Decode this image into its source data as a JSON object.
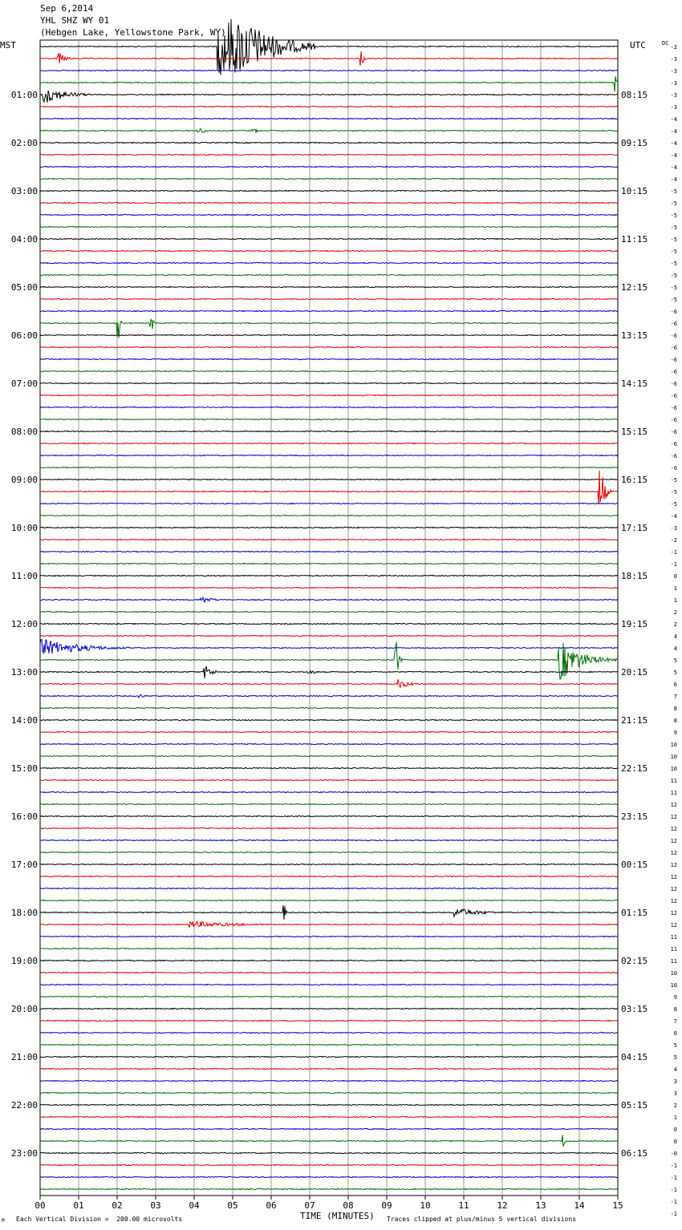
{
  "header": {
    "date": "Sep 6,2014",
    "station": "YHL SHZ WY 01",
    "location": "(Hebgen Lake, Yellowstone Park, WY)"
  },
  "left_label": "MST",
  "right_label": "UTC",
  "dc_label": "DC",
  "footer": {
    "scale": "Each Vertical Division =  200.00 microvolts",
    "xlabel": "TIME (MINUTES)",
    "clip_note": "Traces clipped at plus/minus 5 vertical divisions",
    "corner_mark": "M"
  },
  "chart_data": {
    "type": "line",
    "title": "Sep 6,2014",
    "xlabel": "TIME (MINUTES)",
    "xlim": [
      0,
      15
    ],
    "x_ticks": [
      "00",
      "01",
      "02",
      "03",
      "04",
      "05",
      "06",
      "07",
      "08",
      "09",
      "10",
      "11",
      "12",
      "13",
      "14",
      "15"
    ],
    "trace_colors": [
      "#000000",
      "#e00000",
      "#0000cc",
      "#007000"
    ],
    "mst_hour_labels": [
      "01:00",
      "02:00",
      "03:00",
      "04:00",
      "05:00",
      "06:00",
      "07:00",
      "08:00",
      "09:00",
      "10:00",
      "11:00",
      "12:00",
      "13:00",
      "14:00",
      "15:00",
      "16:00",
      "17:00",
      "18:00",
      "19:00",
      "20:00",
      "21:00",
      "22:00",
      "23:00"
    ],
    "utc_hour_labels": [
      "08:15",
      "09:15",
      "10:15",
      "11:15",
      "12:15",
      "13:15",
      "14:15",
      "15:15",
      "16:15",
      "17:15",
      "18:15",
      "19:15",
      "20:15",
      "21:15",
      "22:15",
      "23:15",
      "00:15",
      "01:15",
      "02:15",
      "03:15",
      "04:15",
      "05:15",
      "06:15"
    ],
    "dc_offsets": [
      "-2",
      "-3",
      "-3",
      "-3",
      "-3",
      "-3",
      "-4",
      "-4",
      "-4",
      "-4",
      "-4",
      "-4",
      "-5",
      "-5",
      "-5",
      "-5",
      "-5",
      "-5",
      "-5",
      "-5",
      "-5",
      "-5",
      "-6",
      "-6",
      "-6",
      "-6",
      "-6",
      "-6",
      "-6",
      "-6",
      "-6",
      "-6",
      "-6",
      "-6",
      "-6",
      "-6",
      "-5",
      "-5",
      "-5",
      "-4",
      "-3",
      "-2",
      "-1",
      "-1",
      "0",
      "1",
      "1",
      "2",
      "2",
      "4",
      "4",
      "5",
      "5",
      "6",
      "7",
      "8",
      "8",
      "9",
      "10",
      "10",
      "10",
      "11",
      "11",
      "12",
      "12",
      "12",
      "12",
      "12",
      "12",
      "12",
      "12",
      "12",
      "12",
      "12",
      "11",
      "11",
      "11",
      "10",
      "10",
      "9",
      "8",
      "7",
      "6",
      "5",
      "5",
      "4",
      "3",
      "3",
      "2",
      "1",
      "0",
      "0",
      "-0",
      "-1",
      "-1",
      "-1",
      "-1",
      "-1"
    ],
    "events": [
      {
        "trace": 0,
        "minute": 4.65,
        "amp": 5,
        "dur": 2.5
      },
      {
        "trace": 1,
        "minute": 0.5,
        "amp": 0.5,
        "dur": 0.5
      },
      {
        "trace": 1,
        "minute": 8.35,
        "amp": 0.7,
        "dur": 0.15
      },
      {
        "trace": 3,
        "minute": 14.95,
        "amp": 0.8,
        "dur": 0.05
      },
      {
        "trace": 4,
        "minute": 0.1,
        "amp": 0.8,
        "dur": 1.5
      },
      {
        "trace": 7,
        "minute": 4.1,
        "amp": 0.3,
        "dur": 0.6
      },
      {
        "trace": 7,
        "minute": 5.55,
        "amp": 0.2,
        "dur": 0.4
      },
      {
        "trace": 23,
        "minute": 2.05,
        "amp": 1.3,
        "dur": 0.1
      },
      {
        "trace": 23,
        "minute": 2.9,
        "amp": 0.8,
        "dur": 0.1
      },
      {
        "trace": 37,
        "minute": 14.55,
        "amp": 2.3,
        "dur": 0.3
      },
      {
        "trace": 51,
        "minute": 13.5,
        "amp": 1.8,
        "dur": 1.5
      },
      {
        "trace": 50,
        "minute": 1.0,
        "amp": 0.3,
        "dur": 0.9
      },
      {
        "trace": 46,
        "minute": 4.2,
        "amp": 0.3,
        "dur": 0.9
      },
      {
        "trace": 50,
        "minute": 0.0,
        "amp": 0.8,
        "dur": 2.8
      },
      {
        "trace": 51,
        "minute": 9.25,
        "amp": 2.0,
        "dur": 0.15
      },
      {
        "trace": 52,
        "minute": 7.0,
        "amp": 0.3,
        "dur": 0.4
      },
      {
        "trace": 52,
        "minute": 4.3,
        "amp": 0.6,
        "dur": 0.5
      },
      {
        "trace": 53,
        "minute": 9.3,
        "amp": 0.4,
        "dur": 0.9
      },
      {
        "trace": 54,
        "minute": 2.6,
        "amp": 0.2,
        "dur": 0.4
      },
      {
        "trace": 72,
        "minute": 6.35,
        "amp": 0.6,
        "dur": 0.1
      },
      {
        "trace": 72,
        "minute": 10.8,
        "amp": 0.4,
        "dur": 1.8
      },
      {
        "trace": 73,
        "minute": 3.9,
        "amp": 0.3,
        "dur": 3.5
      },
      {
        "trace": 91,
        "minute": 13.6,
        "amp": 0.6,
        "dur": 0.08
      }
    ]
  }
}
